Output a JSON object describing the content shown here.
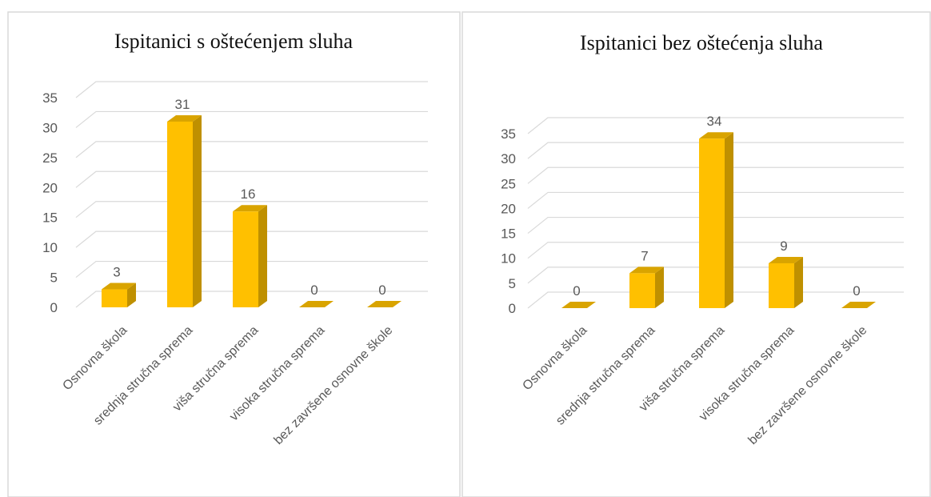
{
  "chart_data": [
    {
      "type": "bar",
      "title": "Ispitanici  s oštećenjem sluha",
      "categories": [
        "Osnovna škola",
        "srednja stručna sprema",
        "viša stručna sprema",
        "visoka stručna sprema",
        "bez završene osnovne škole"
      ],
      "values": [
        3,
        31,
        16,
        0,
        0
      ],
      "color": "#FFC000",
      "ylim": [
        0,
        35
      ],
      "yticks": [
        0,
        5,
        10,
        15,
        20,
        25,
        30,
        35
      ],
      "grid": true
    },
    {
      "type": "bar",
      "title": "Ispitanici bez oštećenja sluha",
      "categories": [
        "Osnovna škola",
        "srednja stručna sprema",
        "viša stručna sprema",
        "visoka stručna sprema",
        "bez završene osnovne škole"
      ],
      "values": [
        0,
        7,
        34,
        9,
        0
      ],
      "color": "#FFC000",
      "ylim": [
        0,
        35
      ],
      "yticks": [
        0,
        5,
        10,
        15,
        20,
        25,
        30,
        35
      ],
      "grid": true
    }
  ]
}
